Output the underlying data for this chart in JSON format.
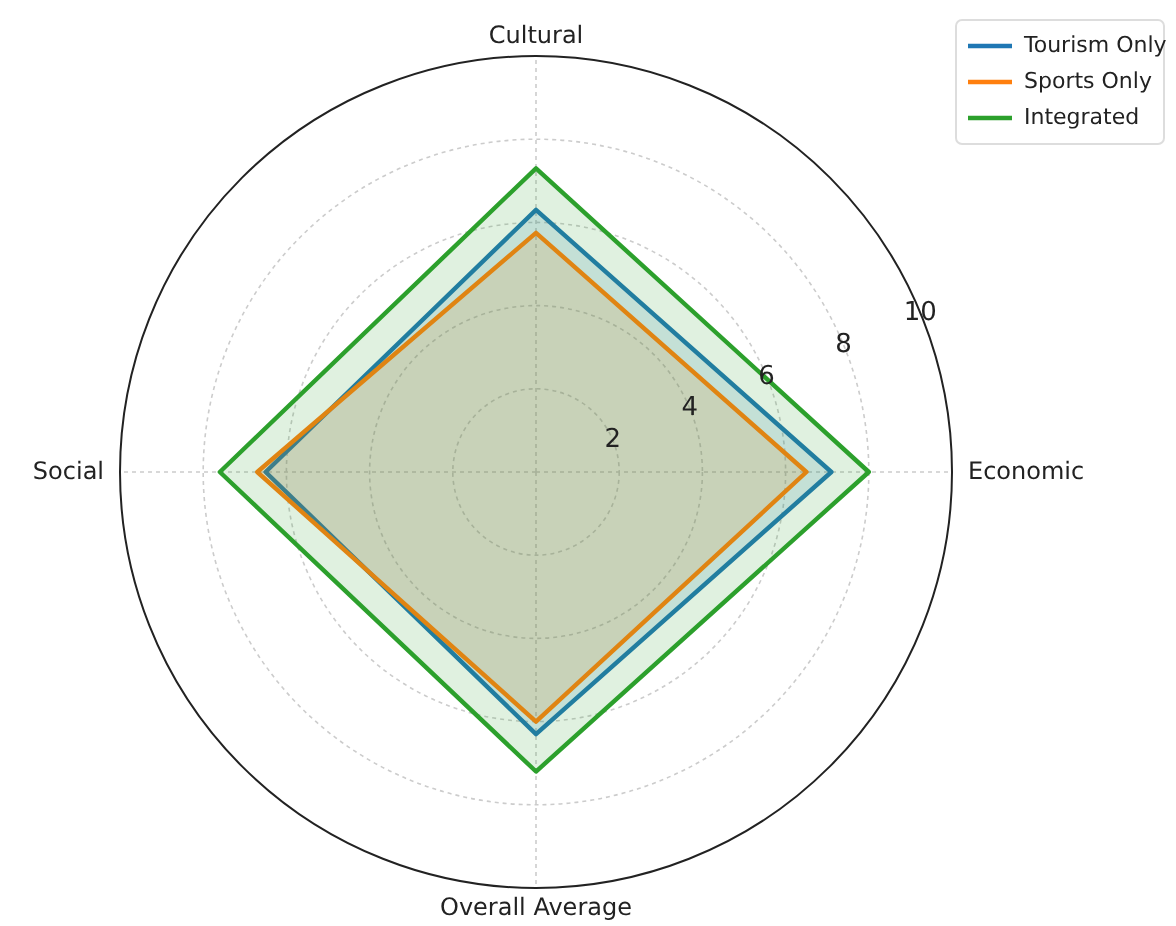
{
  "chart_data": {
    "type": "radar",
    "categories": [
      "Cultural",
      "Economic",
      "Overall Average",
      "Social"
    ],
    "ylim": [
      0,
      10
    ],
    "yticks": [
      2,
      4,
      6,
      8,
      10
    ],
    "grid": true,
    "legend": "top right",
    "series": [
      {
        "name": "Tourism Only",
        "color": "#1f77b4",
        "values": [
          6.3,
          7.1,
          6.3,
          6.5
        ]
      },
      {
        "name": "Sports Only",
        "color": "#ff7f0e",
        "values": [
          5.75,
          6.5,
          6.0,
          6.7
        ]
      },
      {
        "name": "Integrated",
        "color": "#2ca02c",
        "values": [
          7.3,
          8.0,
          7.2,
          7.6
        ]
      }
    ]
  }
}
